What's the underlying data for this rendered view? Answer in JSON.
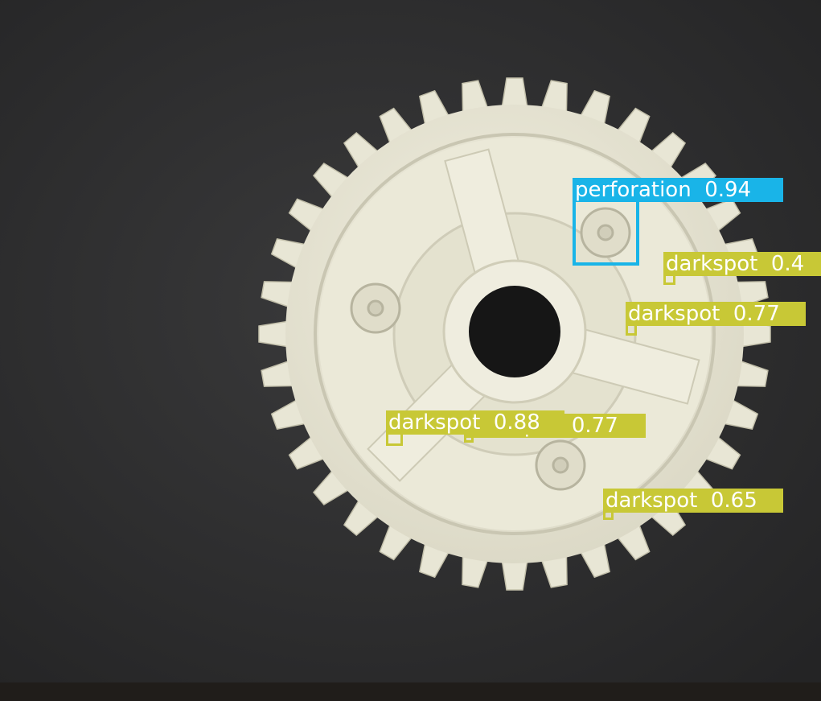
{
  "scene": {
    "description_colors": {
      "background": "#2f2f30",
      "gear_body": "#e6e4d3",
      "gear_shadow": "#b9b6a2",
      "bore": "#151515"
    }
  },
  "colors": {
    "darkspot": "#c8c836",
    "perforation": "#19b4e8",
    "label_text": "#ffffff"
  },
  "detections": [
    {
      "id": "det-perforation",
      "class": "perforation",
      "label": "perforation  0.94",
      "color_key": "perforation"
    },
    {
      "id": "det-darkspot-1",
      "class": "darkspot",
      "label": "darkspot  0.4",
      "color_key": "darkspot"
    },
    {
      "id": "det-darkspot-2",
      "class": "darkspot",
      "label": "darkspot  0.77",
      "color_key": "darkspot"
    },
    {
      "id": "det-darkspot-3",
      "class": "darkspot",
      "label": "darkspot  0.77",
      "color_key": "darkspot"
    },
    {
      "id": "det-darkspot-4",
      "class": "darkspot",
      "label": "darkspot  0.88",
      "color_key": "darkspot"
    },
    {
      "id": "det-darkspot-5",
      "class": "darkspot",
      "label": "darkspot  0.65",
      "color_key": "darkspot"
    }
  ]
}
